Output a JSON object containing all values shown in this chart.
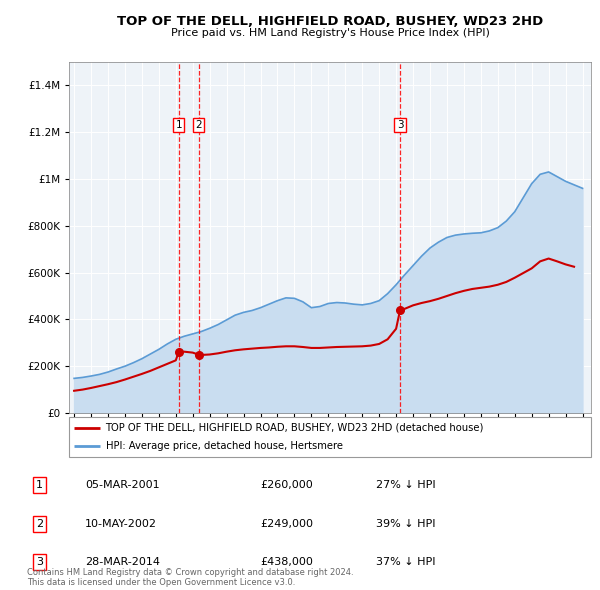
{
  "title": "TOP OF THE DELL, HIGHFIELD ROAD, BUSHEY, WD23 2HD",
  "subtitle": "Price paid vs. HM Land Registry's House Price Index (HPI)",
  "legend_line1": "TOP OF THE DELL, HIGHFIELD ROAD, BUSHEY, WD23 2HD (detached house)",
  "legend_line2": "HPI: Average price, detached house, Hertsmere",
  "footer_line1": "Contains HM Land Registry data © Crown copyright and database right 2024.",
  "footer_line2": "This data is licensed under the Open Government Licence v3.0.",
  "transactions": [
    {
      "num": 1,
      "date": "05-MAR-2001",
      "price": "£260,000",
      "vs_hpi": "27% ↓ HPI"
    },
    {
      "num": 2,
      "date": "10-MAY-2002",
      "price": "£249,000",
      "vs_hpi": "39% ↓ HPI"
    },
    {
      "num": 3,
      "date": "28-MAR-2014",
      "price": "£438,000",
      "vs_hpi": "37% ↓ HPI"
    }
  ],
  "vline_dates": [
    2001.17,
    2002.36,
    2014.23
  ],
  "marker_dates": [
    2001.17,
    2002.36,
    2014.23
  ],
  "marker_prices": [
    260000,
    249000,
    438000
  ],
  "property_color": "#cc0000",
  "hpi_color": "#5b9bd5",
  "hpi_fill_color": "#c9ddf0",
  "chart_bg": "#eef3f8",
  "ylim_max": 1500000,
  "xlim_start": 1994.7,
  "xlim_end": 2025.5,
  "hpi_data": [
    [
      1995,
      148000
    ],
    [
      1995.5,
      152000
    ],
    [
      1996,
      158000
    ],
    [
      1996.5,
      165000
    ],
    [
      1997,
      175000
    ],
    [
      1997.5,
      188000
    ],
    [
      1998,
      200000
    ],
    [
      1998.5,
      215000
    ],
    [
      1999,
      232000
    ],
    [
      1999.5,
      252000
    ],
    [
      2000,
      272000
    ],
    [
      2000.5,
      295000
    ],
    [
      2001,
      315000
    ],
    [
      2001.5,
      328000
    ],
    [
      2002,
      338000
    ],
    [
      2002.5,
      348000
    ],
    [
      2003,
      362000
    ],
    [
      2003.5,
      378000
    ],
    [
      2004,
      398000
    ],
    [
      2004.5,
      418000
    ],
    [
      2005,
      430000
    ],
    [
      2005.5,
      438000
    ],
    [
      2006,
      450000
    ],
    [
      2006.5,
      465000
    ],
    [
      2007,
      480000
    ],
    [
      2007.5,
      492000
    ],
    [
      2008,
      490000
    ],
    [
      2008.5,
      475000
    ],
    [
      2009,
      450000
    ],
    [
      2009.5,
      455000
    ],
    [
      2010,
      468000
    ],
    [
      2010.5,
      472000
    ],
    [
      2011,
      470000
    ],
    [
      2011.5,
      465000
    ],
    [
      2012,
      462000
    ],
    [
      2012.5,
      468000
    ],
    [
      2013,
      480000
    ],
    [
      2013.5,
      510000
    ],
    [
      2014,
      548000
    ],
    [
      2014.5,
      590000
    ],
    [
      2015,
      630000
    ],
    [
      2015.5,
      670000
    ],
    [
      2016,
      705000
    ],
    [
      2016.5,
      730000
    ],
    [
      2017,
      750000
    ],
    [
      2017.5,
      760000
    ],
    [
      2018,
      765000
    ],
    [
      2018.5,
      768000
    ],
    [
      2019,
      770000
    ],
    [
      2019.5,
      778000
    ],
    [
      2020,
      792000
    ],
    [
      2020.5,
      820000
    ],
    [
      2021,
      860000
    ],
    [
      2021.5,
      920000
    ],
    [
      2022,
      980000
    ],
    [
      2022.5,
      1020000
    ],
    [
      2023,
      1030000
    ],
    [
      2023.5,
      1010000
    ],
    [
      2024,
      990000
    ],
    [
      2024.5,
      975000
    ],
    [
      2025,
      960000
    ]
  ],
  "property_data": [
    [
      1995,
      95000
    ],
    [
      1995.5,
      100000
    ],
    [
      1996,
      107000
    ],
    [
      1996.5,
      115000
    ],
    [
      1997,
      123000
    ],
    [
      1997.5,
      132000
    ],
    [
      1998,
      143000
    ],
    [
      1998.5,
      155000
    ],
    [
      1999,
      167000
    ],
    [
      1999.5,
      180000
    ],
    [
      2000,
      195000
    ],
    [
      2000.5,
      210000
    ],
    [
      2001,
      225000
    ],
    [
      2001.17,
      260000
    ],
    [
      2001.5,
      262000
    ],
    [
      2002,
      258000
    ],
    [
      2002.36,
      249000
    ],
    [
      2002.5,
      248000
    ],
    [
      2003,
      250000
    ],
    [
      2003.5,
      255000
    ],
    [
      2004,
      262000
    ],
    [
      2004.5,
      268000
    ],
    [
      2005,
      272000
    ],
    [
      2005.5,
      275000
    ],
    [
      2006,
      278000
    ],
    [
      2006.5,
      280000
    ],
    [
      2007,
      283000
    ],
    [
      2007.5,
      285000
    ],
    [
      2008,
      285000
    ],
    [
      2008.5,
      282000
    ],
    [
      2009,
      278000
    ],
    [
      2009.5,
      278000
    ],
    [
      2010,
      280000
    ],
    [
      2010.5,
      282000
    ],
    [
      2011,
      283000
    ],
    [
      2011.5,
      284000
    ],
    [
      2012,
      285000
    ],
    [
      2012.5,
      288000
    ],
    [
      2013,
      295000
    ],
    [
      2013.5,
      315000
    ],
    [
      2014,
      360000
    ],
    [
      2014.23,
      438000
    ],
    [
      2014.5,
      445000
    ],
    [
      2015,
      460000
    ],
    [
      2015.5,
      470000
    ],
    [
      2016,
      478000
    ],
    [
      2016.5,
      488000
    ],
    [
      2017,
      500000
    ],
    [
      2017.5,
      512000
    ],
    [
      2018,
      522000
    ],
    [
      2018.5,
      530000
    ],
    [
      2019,
      535000
    ],
    [
      2019.5,
      540000
    ],
    [
      2020,
      548000
    ],
    [
      2020.5,
      560000
    ],
    [
      2021,
      578000
    ],
    [
      2021.5,
      598000
    ],
    [
      2022,
      618000
    ],
    [
      2022.5,
      648000
    ],
    [
      2023,
      660000
    ],
    [
      2023.5,
      648000
    ],
    [
      2024,
      635000
    ],
    [
      2024.5,
      625000
    ]
  ]
}
